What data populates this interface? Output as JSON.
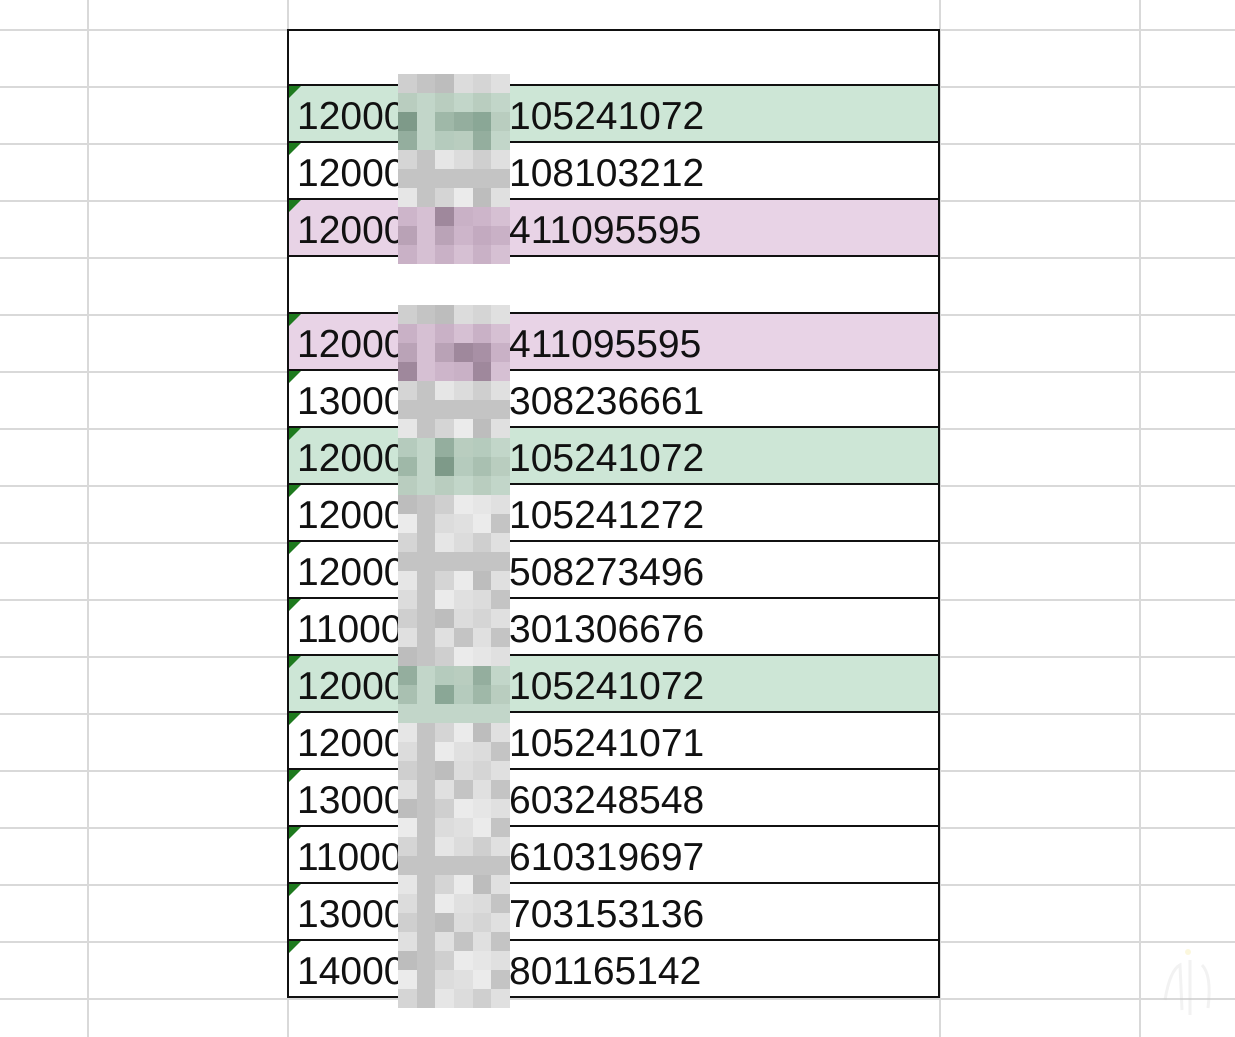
{
  "sheet": {
    "rows": [
      {
        "prefix": "",
        "suffix": "",
        "fill": "white",
        "flag": false
      },
      {
        "prefix": "12000",
        "suffix": "105241072",
        "fill": "green",
        "flag": true
      },
      {
        "prefix": "12000",
        "suffix": "108103212",
        "fill": "white",
        "flag": true
      },
      {
        "prefix": "12000",
        "suffix": "411095595",
        "fill": "purple",
        "flag": true
      },
      {
        "prefix": "",
        "suffix": "",
        "fill": "white",
        "flag": false
      },
      {
        "prefix": "12000",
        "suffix": "411095595",
        "fill": "purple",
        "flag": true
      },
      {
        "prefix": "13000",
        "suffix": "308236661",
        "fill": "white",
        "flag": true
      },
      {
        "prefix": "12000",
        "suffix": "105241072",
        "fill": "green",
        "flag": true
      },
      {
        "prefix": "12000",
        "suffix": "105241272",
        "fill": "white",
        "flag": true
      },
      {
        "prefix": "12000",
        "suffix": "508273496",
        "fill": "white",
        "flag": true
      },
      {
        "prefix": "11000",
        "suffix": "301306676",
        "fill": "white",
        "flag": true
      },
      {
        "prefix": "12000",
        "suffix": "105241072",
        "fill": "green",
        "flag": true
      },
      {
        "prefix": "12000",
        "suffix": "105241071",
        "fill": "white",
        "flag": true
      },
      {
        "prefix": "13000",
        "suffix": "603248548",
        "fill": "white",
        "flag": true
      },
      {
        "prefix": "11000",
        "suffix": "610319697",
        "fill": "white",
        "flag": true
      },
      {
        "prefix": "13000",
        "suffix": "703153136",
        "fill": "white",
        "flag": true
      },
      {
        "prefix": "14000",
        "suffix": "801165142",
        "fill": "white",
        "flag": true
      }
    ]
  },
  "colors": {
    "green_fill": "#cde6d6",
    "purple_fill": "#e8d3e6",
    "gridline": "#d9d9d9",
    "border": "#111111",
    "error_flag": "#1e7a1e"
  },
  "icons": {
    "error_indicator": "green-triangle-flag-icon",
    "redaction": "pixelated-mosaic"
  }
}
